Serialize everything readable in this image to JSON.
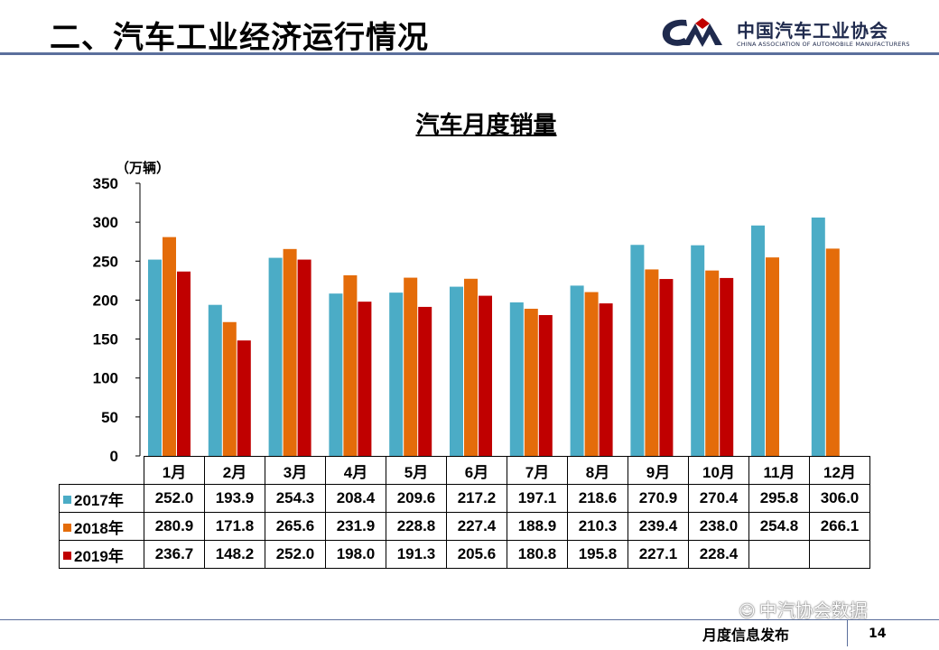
{
  "slide": {
    "title": "二、汽车工业经济运行情况",
    "logo_cn": "中国汽车工业协会",
    "logo_en": "CHINA ASSOCIATION OF AUTOMOBILE MANUFACTURERS",
    "footer": "月度信息发布",
    "page_number": "14",
    "watermark": "中汽协会数据"
  },
  "chart_data": {
    "type": "bar",
    "title": "汽车月度销量",
    "ylabel": "（万辆）",
    "xlabel": "",
    "ylim": [
      0,
      350
    ],
    "yticks": [
      0,
      50,
      100,
      150,
      200,
      250,
      300,
      350
    ],
    "categories": [
      "1月",
      "2月",
      "3月",
      "4月",
      "5月",
      "6月",
      "7月",
      "8月",
      "9月",
      "10月",
      "11月",
      "12月"
    ],
    "series": [
      {
        "name": "2017年",
        "color": "#4bacc6",
        "values": [
          252.0,
          193.9,
          254.3,
          208.4,
          209.6,
          217.2,
          197.1,
          218.6,
          270.9,
          270.4,
          295.8,
          306.0
        ]
      },
      {
        "name": "2018年",
        "color": "#e46c0a",
        "values": [
          280.9,
          171.8,
          265.6,
          231.9,
          228.8,
          227.4,
          188.9,
          210.3,
          239.4,
          238.0,
          254.8,
          266.1
        ]
      },
      {
        "name": "2019年",
        "color": "#c00000",
        "values": [
          236.7,
          148.2,
          252.0,
          198.0,
          191.3,
          205.6,
          180.8,
          195.8,
          227.1,
          228.4,
          null,
          null
        ]
      }
    ],
    "grid": false,
    "legend": "table-below"
  }
}
